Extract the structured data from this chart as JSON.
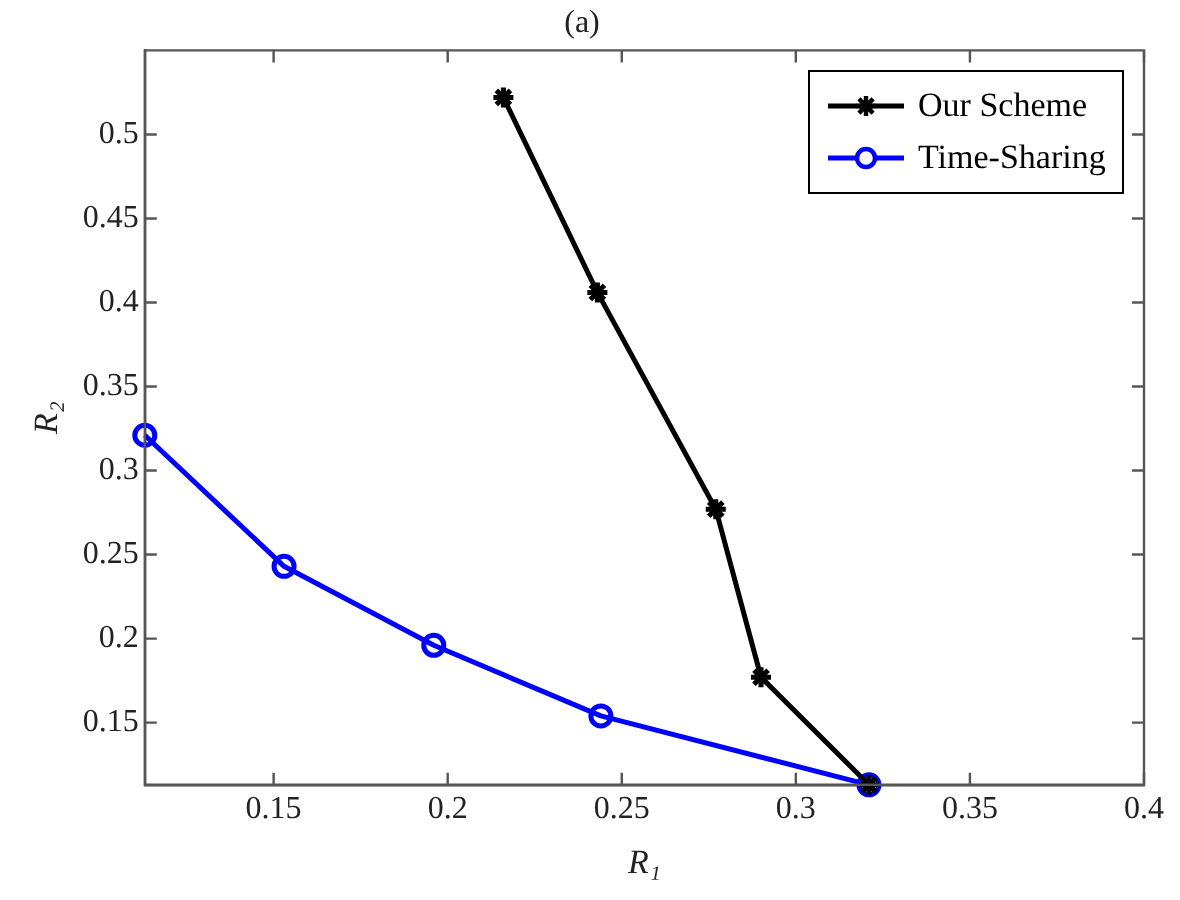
{
  "chart_data": {
    "type": "line",
    "title": "(a)",
    "xlabel": "R₁",
    "ylabel": "R₂",
    "xlim": [
      0.113,
      0.4
    ],
    "ylim": [
      0.113,
      0.55
    ],
    "xticks": [
      0.15,
      0.2,
      0.25,
      0.3,
      0.35,
      0.4
    ],
    "yticks": [
      0.15,
      0.2,
      0.25,
      0.3,
      0.35,
      0.4,
      0.45,
      0.5
    ],
    "legend": "top right",
    "line_style": "solid",
    "series": [
      {
        "name": "Our Scheme",
        "color": "#000000",
        "marker": "cross",
        "x": [
          0.216,
          0.243,
          0.277,
          0.29,
          0.321
        ],
        "values": [
          0.522,
          0.406,
          0.277,
          0.177,
          0.113
        ]
      },
      {
        "name": "Time-Sharing",
        "color": "#0000ff",
        "marker": "circle",
        "x": [
          0.113,
          0.153,
          0.196,
          0.244,
          0.321
        ],
        "values": [
          0.321,
          0.243,
          0.196,
          0.154,
          0.113
        ]
      }
    ]
  }
}
